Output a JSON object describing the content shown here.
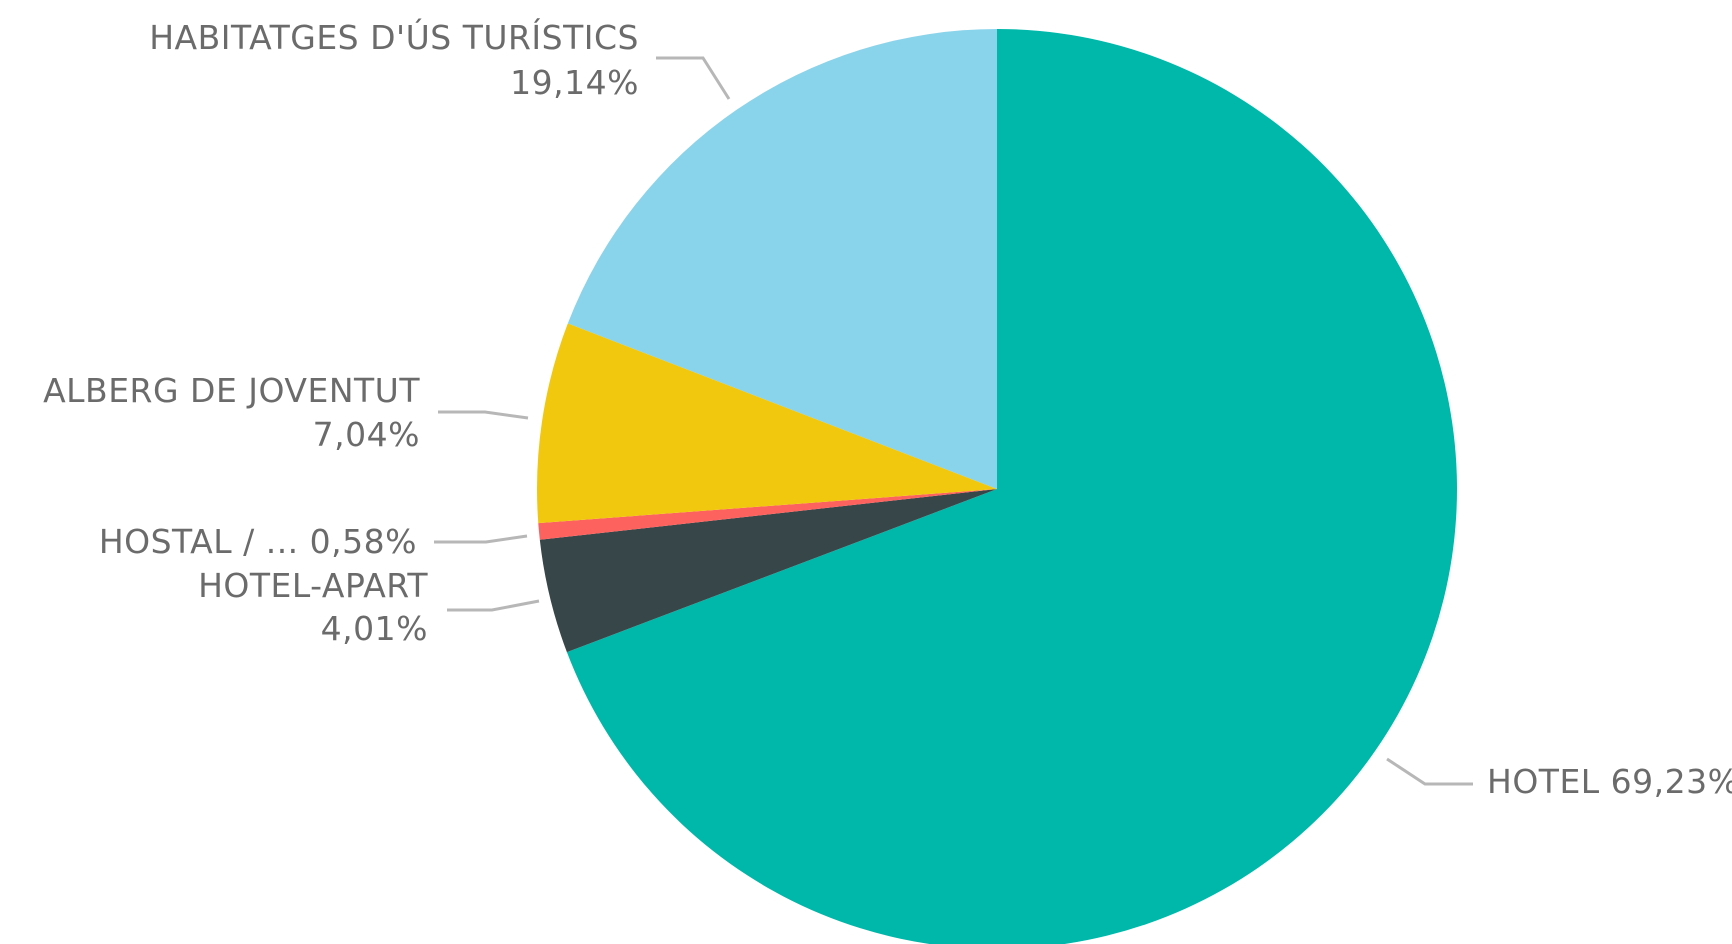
{
  "chart_data": {
    "type": "pie",
    "slices": [
      {
        "label": "HOTEL",
        "value_label": "69,23%",
        "value": 69.23,
        "color": "#00B8AA"
      },
      {
        "label": "HOTEL-APART",
        "value_label": "4,01%",
        "value": 4.01,
        "color": "#374649"
      },
      {
        "label": "HOSTAL / ...",
        "value_label": "0,58%",
        "value": 0.58,
        "color": "#FD625E"
      },
      {
        "label": "ALBERG DE JOVENTUT",
        "value_label": "7,04%",
        "value": 7.04,
        "color": "#F2C80F"
      },
      {
        "label": "HABITATGES D'ÚS TURÍSTICS",
        "value_label": "19,14%",
        "value": 19.14,
        "color": "#8AD4EB"
      }
    ],
    "start_angle": "12 o'clock",
    "direction": "clockwise",
    "legend": "none",
    "data_labels": "outside with leader lines"
  }
}
